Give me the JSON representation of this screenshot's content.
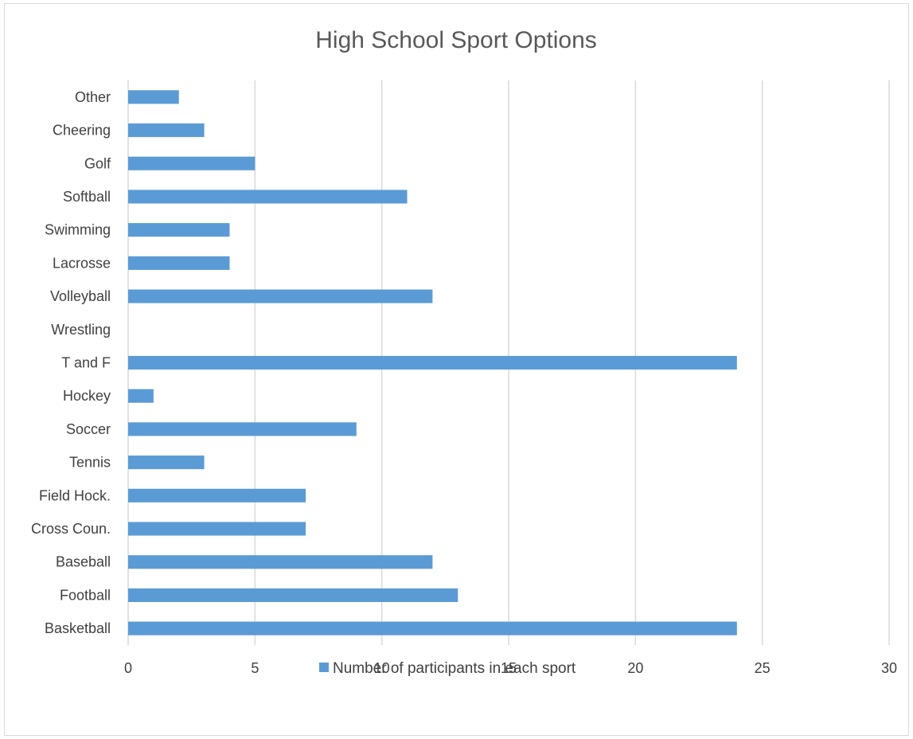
{
  "chart_data": {
    "type": "bar",
    "orientation": "horizontal",
    "title": "High School Sport Options",
    "categories": [
      "Basketball",
      "Football",
      "Baseball",
      "Cross Coun.",
      "Field Hock.",
      "Tennis",
      "Soccer",
      "Hockey",
      "T and F",
      "Wrestling",
      "Volleyball",
      "Lacrosse",
      "Swimming",
      "Softball",
      "Golf",
      "Cheering",
      "Other"
    ],
    "series": [
      {
        "name": "Number of participants in each sport",
        "values": [
          24,
          13,
          12,
          7,
          7,
          3,
          9,
          1,
          24,
          0,
          12,
          4,
          4,
          11,
          5,
          3,
          2
        ]
      }
    ],
    "xlim": [
      0,
      30
    ],
    "xticks": [
      0,
      5,
      10,
      15,
      20,
      25,
      30
    ],
    "grid": "vertical",
    "legend_position": "bottom",
    "bar_color": "#5b9bd5",
    "grid_color": "#d9d9d9"
  }
}
